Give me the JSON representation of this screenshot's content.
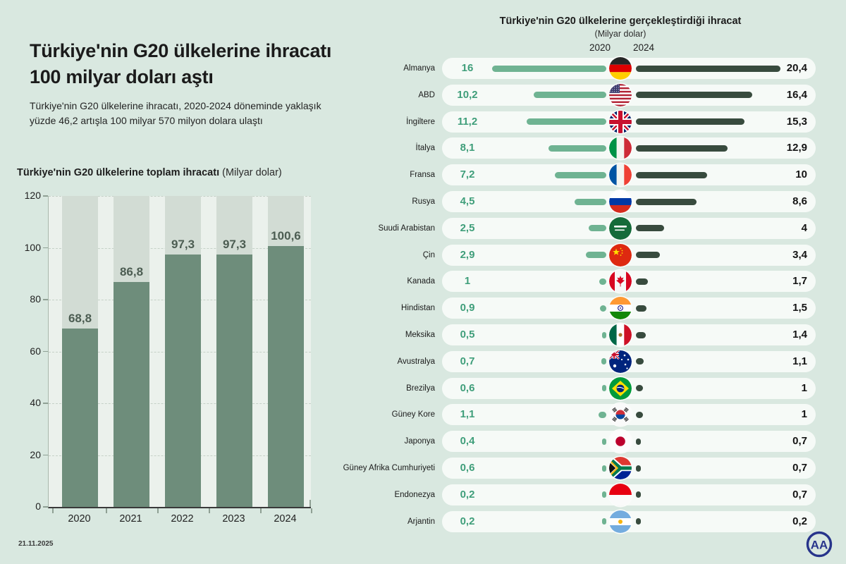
{
  "header": {
    "title": "Türkiye'nin G20 ülkelerine ihracatı 100 milyar doları aştı",
    "subtitle": "Türkiye'nin G20 ülkelerine ihracatı, 2020-2024 döneminde yaklaşık yüzde 46,2 artışla 100 milyar 570 milyon dolara ulaştı"
  },
  "chart_data": [
    {
      "type": "bar",
      "title": "Türkiye'nin G20 ülkelerine toplam ihracatı",
      "unit_label": "(Milyar dolar)",
      "categories": [
        "2020",
        "2021",
        "2022",
        "2023",
        "2024"
      ],
      "values": [
        68.8,
        86.8,
        97.3,
        97.3,
        100.6
      ],
      "value_labels": [
        "68,8",
        "86,8",
        "97,3",
        "97,3",
        "100,6"
      ],
      "xlabel": "",
      "ylabel": "",
      "ylim": [
        0,
        120
      ],
      "ytick_step": 20,
      "grid": true,
      "legend_position": "none"
    },
    {
      "type": "bar",
      "orientation": "horizontal-paired",
      "title": "Türkiye'nin G20 ülkelerine gerçekleştirdiği ihracat",
      "unit_label": "(Milyar dolar)",
      "legend": [
        "2020",
        "2024"
      ],
      "legend_position": "top-center",
      "categories": [
        "Almanya",
        "ABD",
        "İngiltere",
        "İtalya",
        "Fransa",
        "Rusya",
        "Suudi Arabistan",
        "Çin",
        "Kanada",
        "Hindistan",
        "Meksika",
        "Avustralya",
        "Brezilya",
        "Güney Kore",
        "Japonya",
        "Güney Afrika Cumhuriyeti",
        "Endonezya",
        "Arjantin"
      ],
      "flags": [
        "de",
        "us",
        "gb",
        "it",
        "fr",
        "ru",
        "sa",
        "cn",
        "ca",
        "in",
        "mx",
        "au",
        "br",
        "kr",
        "jp",
        "za",
        "id",
        "ar"
      ],
      "series": [
        {
          "name": "2020",
          "values": [
            16,
            10.2,
            11.2,
            8.1,
            7.2,
            4.5,
            2.5,
            2.9,
            1,
            0.9,
            0.5,
            0.7,
            0.6,
            1.1,
            0.4,
            0.6,
            0.2,
            0.2
          ],
          "labels": [
            "16",
            "10,2",
            "11,2",
            "8,1",
            "7,2",
            "4,5",
            "2,5",
            "2,9",
            "1",
            "0,9",
            "0,5",
            "0,7",
            "0,6",
            "1,1",
            "0,4",
            "0,6",
            "0,2",
            "0,2"
          ]
        },
        {
          "name": "2024",
          "values": [
            20.4,
            16.4,
            15.3,
            12.9,
            10,
            8.6,
            4,
            3.4,
            1.7,
            1.5,
            1.4,
            1.1,
            1,
            1,
            0.7,
            0.7,
            0.7,
            0.2
          ],
          "labels": [
            "20,4",
            "16,4",
            "15,3",
            "12,9",
            "10",
            "8,6",
            "4",
            "3,4",
            "1,7",
            "1,5",
            "1,4",
            "1,1",
            "1",
            "1",
            "0,7",
            "0,7",
            "0,7",
            "0,2"
          ]
        }
      ]
    }
  ],
  "footer": {
    "date": "21.11.2025",
    "logo": "AA"
  },
  "colors": {
    "background": "#d9e8e0",
    "plot_bg": "#ebf1ec",
    "track": "#d2dcd4",
    "bar": "#6e8d7b",
    "bar_label": "#4c5d52",
    "pill": "#f6faf7",
    "bar_2020": "#6fb392",
    "bar_2024": "#384b3e",
    "value_2020": "#3f9e7a",
    "value_2024": "#141414",
    "text": "#1b1b1b",
    "logo_blue": "#27348b"
  }
}
